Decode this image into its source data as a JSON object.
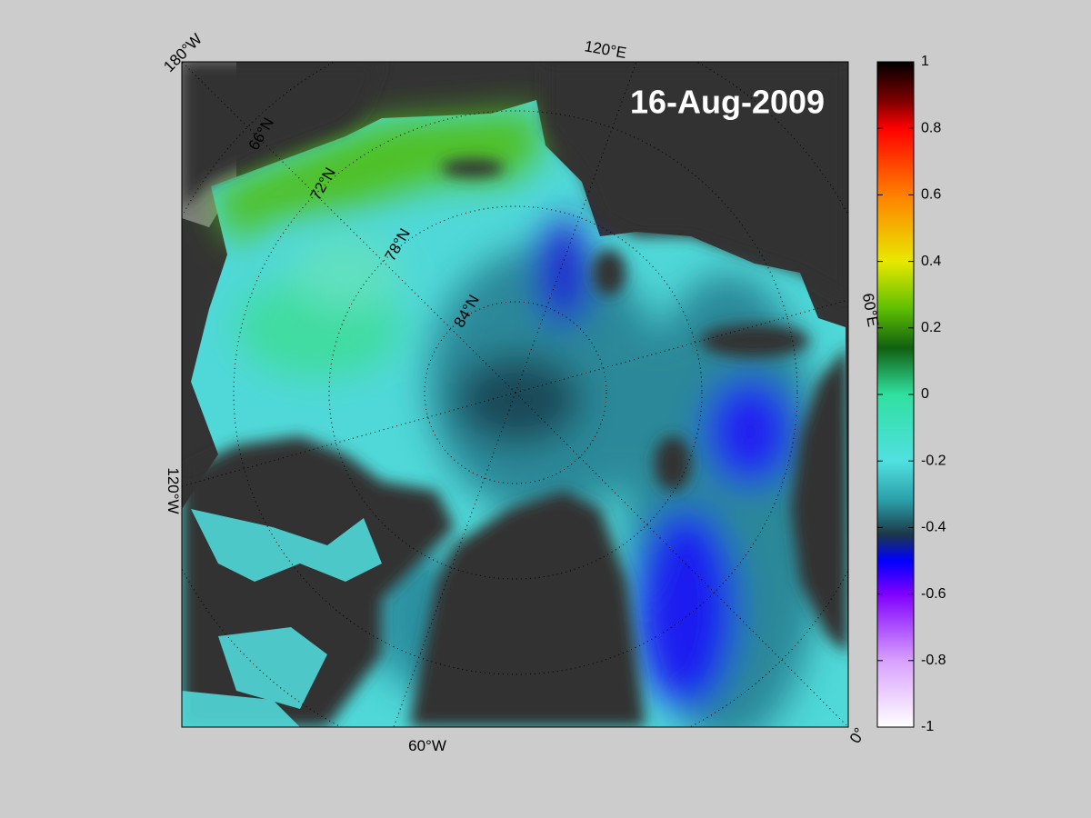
{
  "title": "16-Aug-2009",
  "colorbar": {
    "lim": [
      -1,
      1
    ],
    "ticks": [
      1,
      0.8,
      0.6,
      0.4,
      0.2,
      0,
      -0.2,
      -0.4,
      -0.6,
      -0.8,
      -1
    ]
  },
  "map_labels": {
    "lon": [
      "180°W",
      "120°E",
      "60°E",
      "0°",
      "60°W",
      "120°W"
    ],
    "lat": [
      "66°N",
      "72°N",
      "78°N",
      "84°N"
    ]
  }
}
